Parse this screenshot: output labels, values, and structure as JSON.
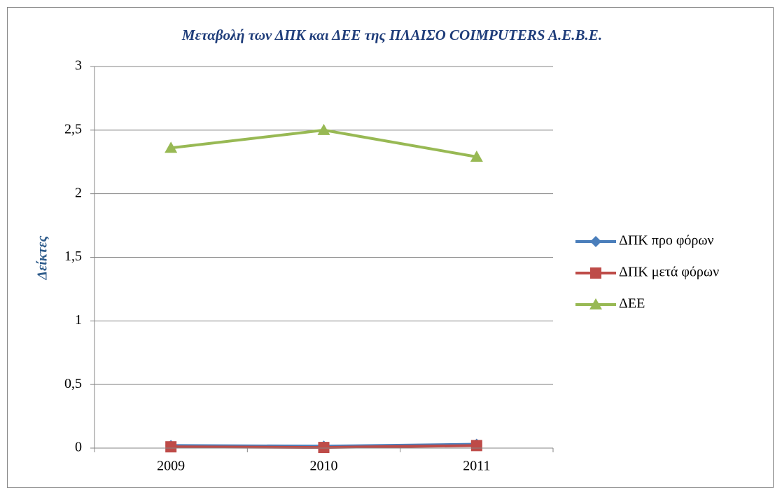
{
  "chart_data": {
    "type": "line",
    "title": "Μεταβολή των ΔΠΚ και ΔΕΕ της ΠΛΑΙΣΟ COIMPUTERS A.E.B.E.",
    "y_label": "Δείκτες",
    "categories": [
      "2009",
      "2010",
      "2011"
    ],
    "series": [
      {
        "name": "ΔΠΚ  προ φόρων",
        "color": "#4a7ebb",
        "values": [
          0.02,
          0.015,
          0.03
        ]
      },
      {
        "name": "ΔΠΚ  μετά φόρων",
        "color": "#be4b48",
        "values": [
          0.01,
          0.005,
          0.02
        ]
      },
      {
        "name": "ΔΕΕ",
        "color": "#98b954",
        "values": [
          2.36,
          2.5,
          2.29
        ]
      }
    ],
    "ylim": [
      0,
      3
    ],
    "yticks": [
      0,
      {
        "value": 0.5,
        "label": "0,5"
      },
      1,
      {
        "value": 1.5,
        "label": "1,5"
      },
      2,
      {
        "value": 2.5,
        "label": "2,5"
      },
      3
    ],
    "grid": true,
    "legend": "right"
  }
}
